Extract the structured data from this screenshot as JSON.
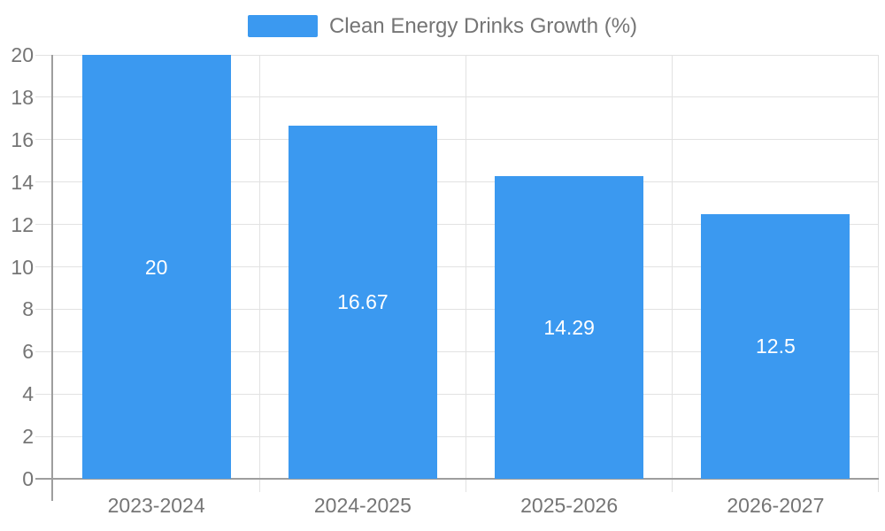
{
  "chart_data": {
    "type": "bar",
    "categories": [
      "2023-2024",
      "2024-2025",
      "2025-2026",
      "2026-2027"
    ],
    "values": [
      20,
      16.67,
      14.29,
      12.5
    ],
    "value_labels": [
      "20",
      "16.67",
      "14.29",
      "12.5"
    ],
    "legend_entries": [
      "Clean Energy Drinks Growth (%)"
    ],
    "legend_position": "top-center",
    "title": "",
    "xlabel": "",
    "ylabel": "",
    "ylim": [
      0,
      20
    ],
    "ytick_step": 2,
    "grid": true,
    "value_label_position": "inside-center",
    "colors": {
      "bar": "#3B99F0",
      "axis": "#9E9E9E",
      "gridline": "#E2E2E2",
      "tick_label": "#757575",
      "legend_text": "#757575",
      "value_label": "#FFFFFF",
      "background": "#FFFFFF"
    }
  }
}
